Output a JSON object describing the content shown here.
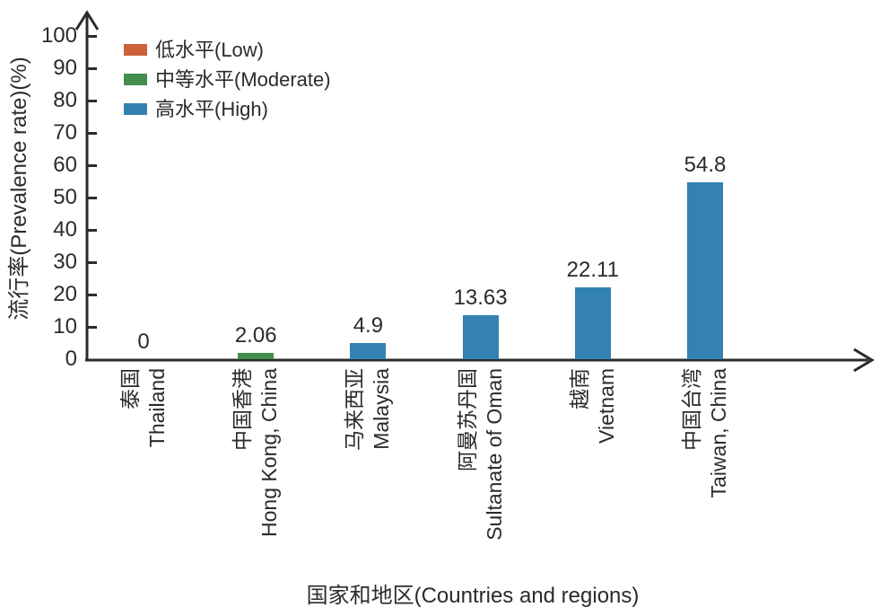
{
  "chart_data": {
    "type": "bar",
    "title": "",
    "xlabel": "国家和地区(Countries and regions)",
    "ylabel": "流行率(Prevalence rate)(%)",
    "ylim": [
      0,
      100
    ],
    "yticks": [
      0,
      10,
      20,
      30,
      40,
      50,
      60,
      70,
      80,
      90,
      100
    ],
    "grid": false,
    "legend_position": "upper-left",
    "categories": [
      {
        "zh": "泰国",
        "en": "Thailand"
      },
      {
        "zh": "中国香港",
        "en": "Hong Kong, China"
      },
      {
        "zh": "马来西亚",
        "en": "Malaysia"
      },
      {
        "zh": "阿曼苏丹国",
        "en": "Sultanate of Oman"
      },
      {
        "zh": "越南",
        "en": "Vietnam"
      },
      {
        "zh": "中国台湾",
        "en": "Taiwan, China"
      }
    ],
    "values": [
      0,
      2.06,
      4.9,
      13.63,
      22.11,
      54.8
    ],
    "value_labels": [
      "0",
      "2.06",
      "4.9",
      "13.63",
      "22.11",
      "54.8"
    ],
    "bar_levels": [
      "low",
      "moderate",
      "high",
      "high",
      "high",
      "high"
    ],
    "legend": [
      {
        "label": "低水平(Low)",
        "level": "low",
        "color": "#cd6137"
      },
      {
        "label": "中等水平(Moderate)",
        "level": "moderate",
        "color": "#438d4e"
      },
      {
        "label": "高水平(High)",
        "level": "high",
        "color": "#3382b2"
      }
    ],
    "colors": {
      "low": "#cd6137",
      "moderate": "#438d4e",
      "high": "#3382b2"
    },
    "axis_color": "#2b2b2b",
    "text_color": "#2b2b2b"
  }
}
